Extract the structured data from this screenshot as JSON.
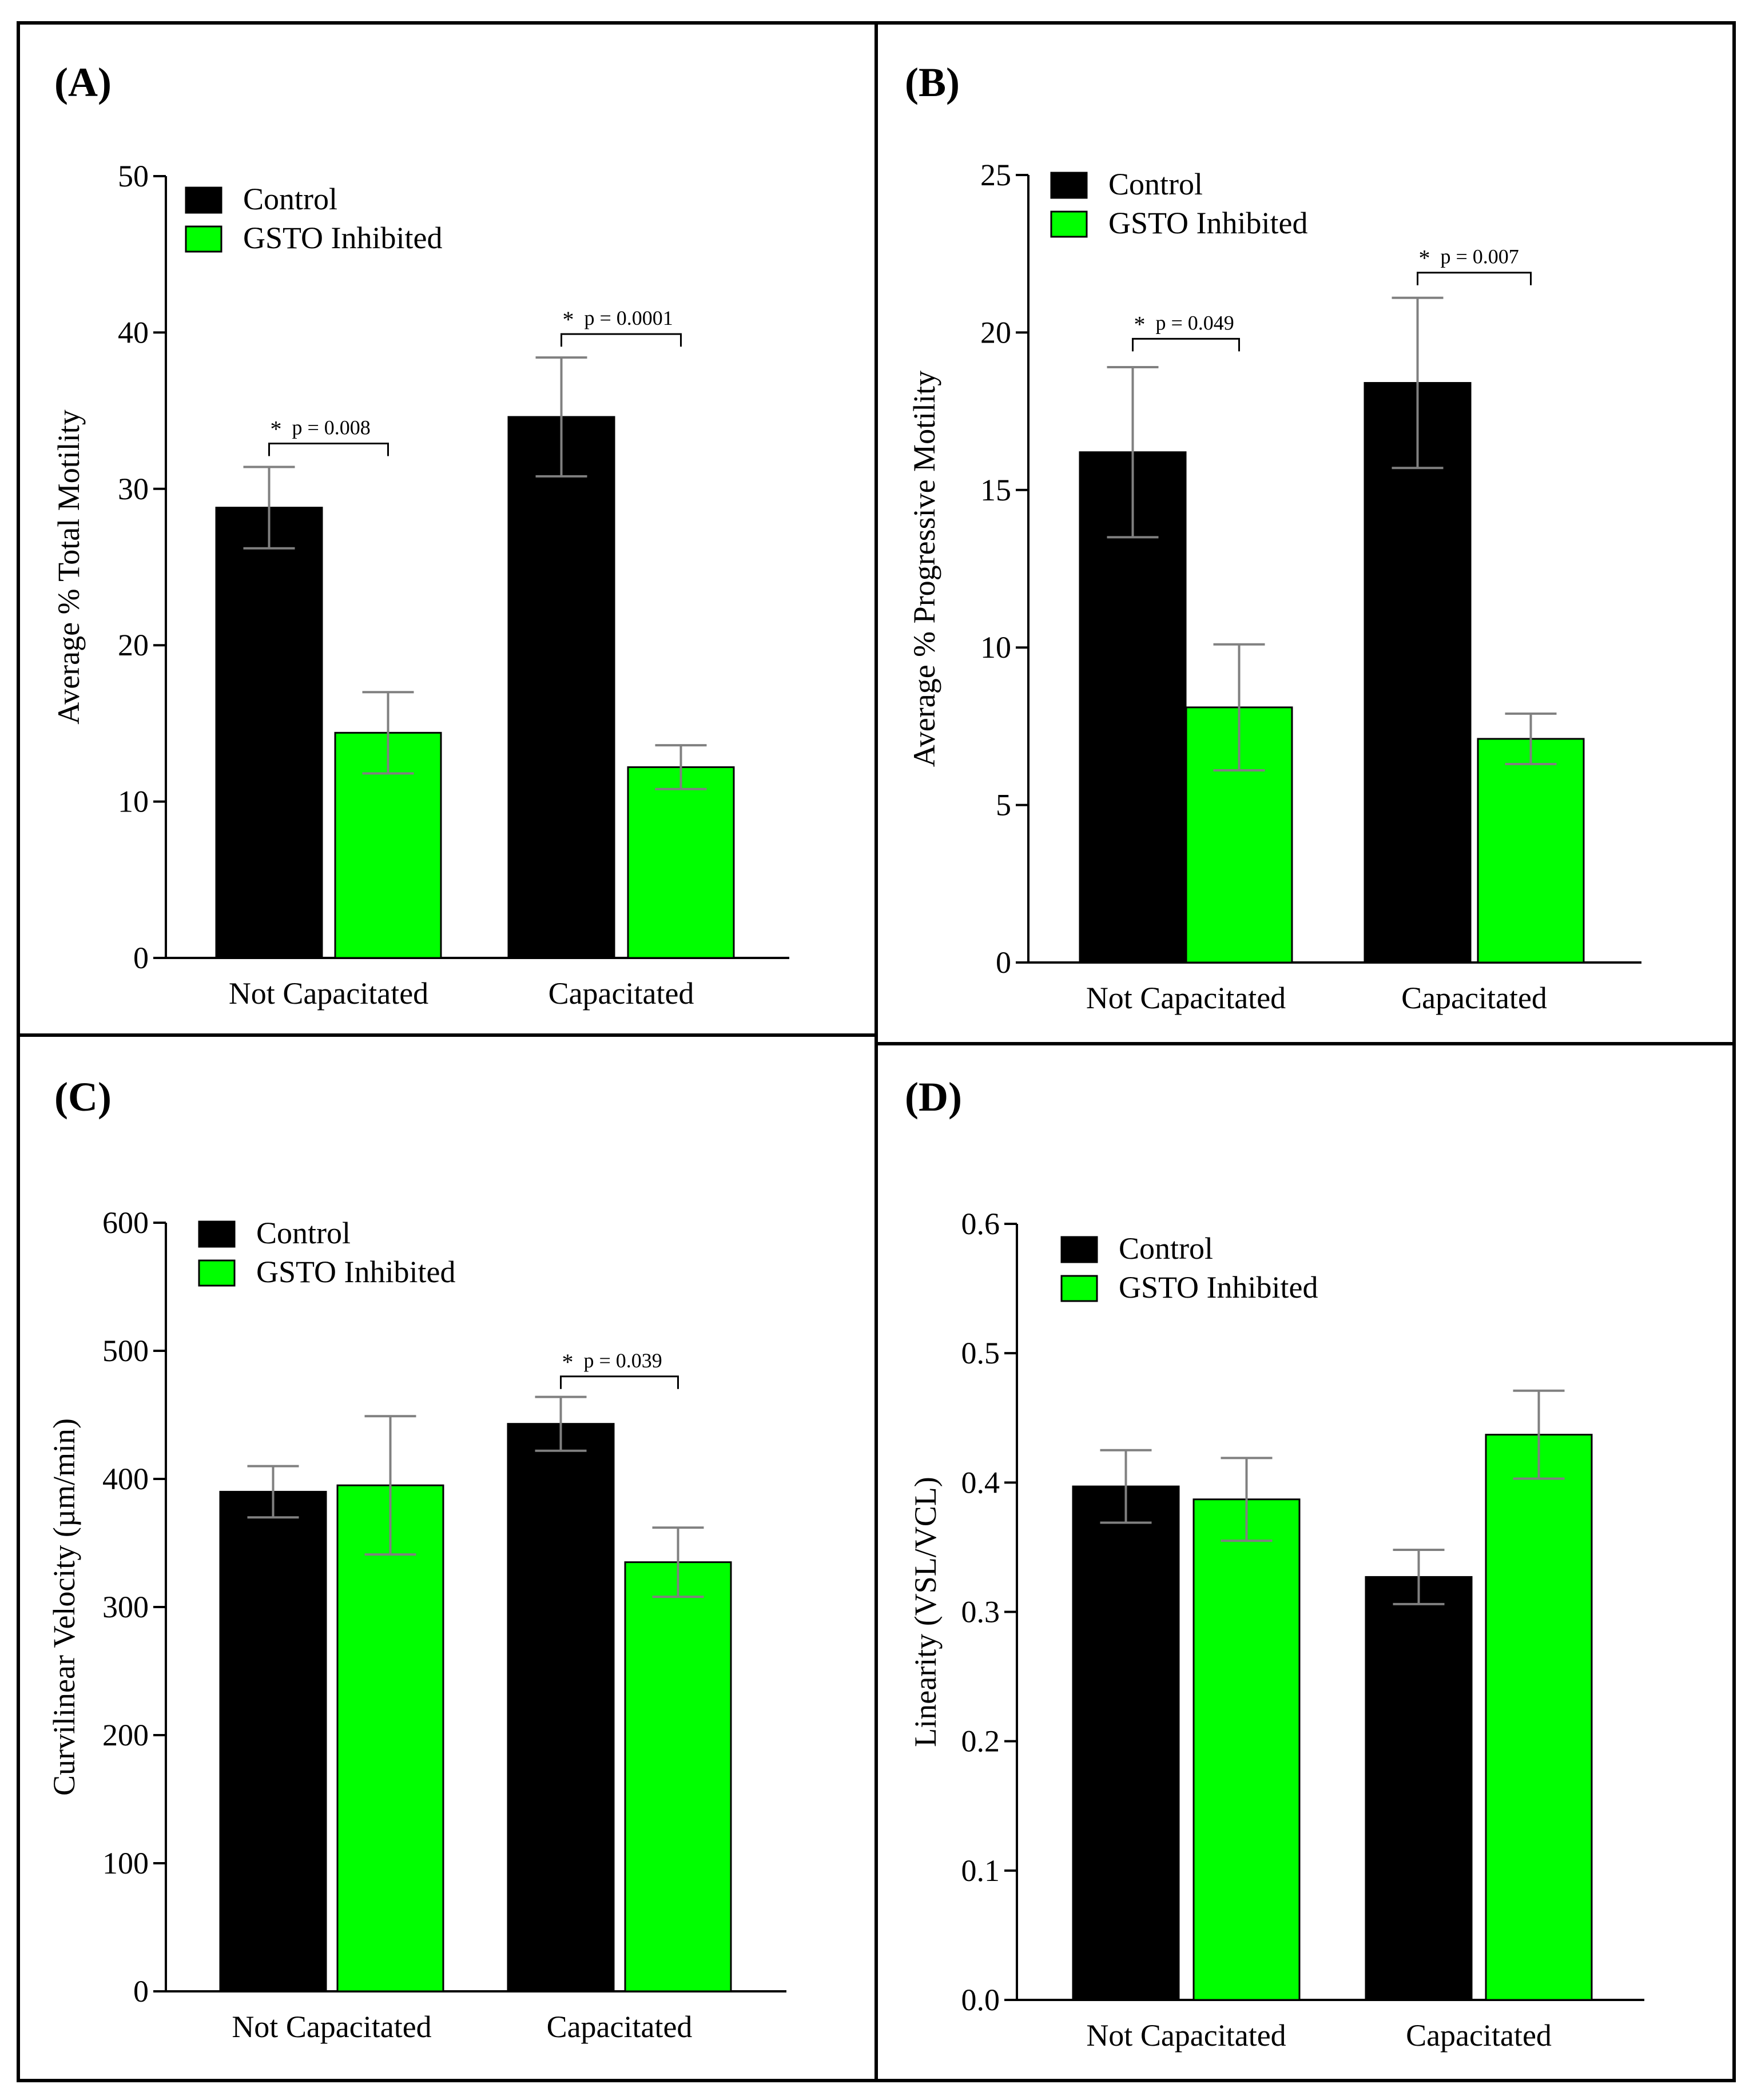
{
  "chart_data": [
    {
      "panel": "(A)",
      "type": "bar",
      "categories": [
        "Not Capacitated",
        "Capacitated"
      ],
      "series": [
        {
          "name": "Control",
          "values": [
            28.8,
            34.6
          ],
          "errors": [
            2.6,
            3.8
          ]
        },
        {
          "name": "GSTO Inhibited",
          "values": [
            14.4,
            12.2
          ],
          "errors": [
            2.6,
            1.4
          ]
        }
      ],
      "xlabel": "",
      "ylabel": "Average % Total Motility",
      "ylim": [
        0,
        50
      ],
      "yticks": [
        "0",
        "10",
        "20",
        "30",
        "40",
        "50"
      ],
      "legend": {
        "position": "top-left",
        "entries": [
          "Control",
          "GSTO Inhibited"
        ]
      },
      "annotations": [
        {
          "category": "Not Capacitated",
          "star": "*",
          "text": "p = 0.008",
          "at": 32.9
        },
        {
          "category": "Capacitated",
          "star": "*",
          "text": "p = 0.0001",
          "at": 39.9
        }
      ]
    },
    {
      "panel": "(B)",
      "type": "bar",
      "categories": [
        "Not Capacitated",
        "Capacitated"
      ],
      "series": [
        {
          "name": "Control",
          "values": [
            16.2,
            18.4
          ],
          "errors": [
            2.7,
            2.7
          ]
        },
        {
          "name": "GSTO Inhibited",
          "values": [
            8.1,
            7.1
          ],
          "errors": [
            2.0,
            0.8
          ]
        }
      ],
      "xlabel": "",
      "ylabel": "Average % Progressive Motility",
      "ylim": [
        0,
        25
      ],
      "yticks": [
        "0",
        "5",
        "10",
        "15",
        "20",
        "25"
      ],
      "legend": {
        "position": "top-left",
        "entries": [
          "Control",
          "GSTO Inhibited"
        ]
      },
      "annotations": [
        {
          "category": "Not Capacitated",
          "star": "*",
          "text": "p = 0.049",
          "at": 19.8
        },
        {
          "category": "Capacitated",
          "star": "*",
          "text": "p = 0.007",
          "at": 21.9
        }
      ]
    },
    {
      "panel": "(C)",
      "type": "bar",
      "categories": [
        "Not Capacitated",
        "Capacitated"
      ],
      "series": [
        {
          "name": "Control",
          "values": [
            390,
            443
          ],
          "errors": [
            20,
            21
          ]
        },
        {
          "name": "GSTO Inhibited",
          "values": [
            395,
            335
          ],
          "errors": [
            54,
            27
          ]
        }
      ],
      "xlabel": "",
      "ylabel": "Curvilinear Velocity (µm/min)",
      "ylim": [
        0,
        600
      ],
      "yticks": [
        "0",
        "100",
        "200",
        "300",
        "400",
        "500",
        "600"
      ],
      "legend": {
        "position": "top-left",
        "entries": [
          "Control",
          "GSTO Inhibited"
        ]
      },
      "annotations": [
        {
          "category": "Capacitated",
          "star": "*",
          "text": "p = 0.039",
          "at": 480
        }
      ]
    },
    {
      "panel": "(D)",
      "type": "bar",
      "categories": [
        "Not Capacitated",
        "Capacitated"
      ],
      "series": [
        {
          "name": "Control",
          "values": [
            0.397,
            0.327
          ],
          "errors": [
            0.028,
            0.021
          ]
        },
        {
          "name": "GSTO Inhibited",
          "values": [
            0.387,
            0.437
          ],
          "errors": [
            0.032,
            0.034
          ]
        }
      ],
      "xlabel": "",
      "ylabel": "Linearity (VSL/VCL)",
      "ylim": [
        0,
        0.6
      ],
      "yticks": [
        "0.0",
        "0.1",
        "0.2",
        "0.3",
        "0.4",
        "0.5",
        "0.6"
      ],
      "legend": {
        "position": "top-left",
        "entries": [
          "Control",
          "GSTO Inhibited"
        ]
      },
      "annotations": []
    }
  ],
  "colors": {
    "control": "#000000",
    "gsto": "#00ff00",
    "error_bar": "#808080",
    "frame": "#000000"
  }
}
